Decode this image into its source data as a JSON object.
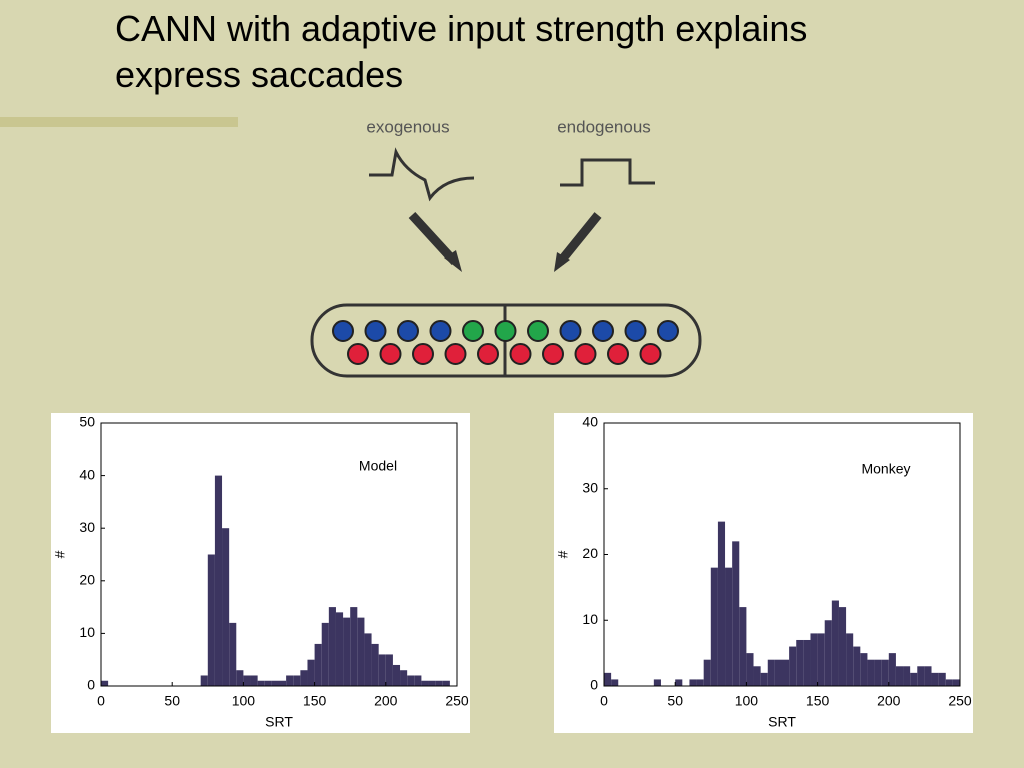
{
  "slide": {
    "title": "CANN with adaptive input strength explains express saccades"
  },
  "diagram": {
    "labels": [
      "exogenous",
      "endogenous"
    ]
  },
  "chart_data": [
    {
      "type": "histogram",
      "annotation": "Model",
      "xlabel": "SRT",
      "ylabel": "#",
      "color": "#3c3560",
      "bins": [
        0,
        5,
        10,
        15,
        20,
        25,
        30,
        35,
        40,
        45,
        50,
        55,
        60,
        65,
        70,
        75,
        80,
        85,
        90,
        95,
        100,
        105,
        110,
        115,
        120,
        125,
        130,
        135,
        140,
        145,
        150,
        155,
        160,
        165,
        170,
        175,
        180,
        185,
        190,
        195,
        200,
        205,
        210,
        215,
        220,
        225,
        230,
        235,
        240,
        245,
        250
      ],
      "values": [
        1,
        0,
        0,
        0,
        0,
        0,
        0,
        0,
        0,
        0,
        0,
        0,
        0,
        0,
        2,
        25,
        40,
        30,
        12,
        3,
        2,
        2,
        1,
        1,
        1,
        1,
        2,
        2,
        3,
        5,
        8,
        12,
        15,
        14,
        13,
        15,
        13,
        10,
        8,
        6,
        6,
        4,
        3,
        2,
        2,
        1,
        1,
        1,
        1,
        0
      ],
      "xlim": [
        0,
        250
      ],
      "xticks": [
        0,
        50,
        100,
        150,
        200,
        250
      ],
      "ylim": [
        0,
        50
      ],
      "yticks": [
        0,
        10,
        20,
        30,
        40,
        50
      ]
    },
    {
      "type": "histogram",
      "annotation": "Monkey",
      "xlabel": "SRT",
      "ylabel": "#",
      "color": "#3c3560",
      "bins": [
        0,
        5,
        10,
        15,
        20,
        25,
        30,
        35,
        40,
        45,
        50,
        55,
        60,
        65,
        70,
        75,
        80,
        85,
        90,
        95,
        100,
        105,
        110,
        115,
        120,
        125,
        130,
        135,
        140,
        145,
        150,
        155,
        160,
        165,
        170,
        175,
        180,
        185,
        190,
        195,
        200,
        205,
        210,
        215,
        220,
        225,
        230,
        235,
        240,
        245,
        250
      ],
      "values": [
        2,
        1,
        0,
        0,
        0,
        0,
        0,
        1,
        0,
        0,
        1,
        0,
        1,
        1,
        4,
        18,
        25,
        18,
        22,
        12,
        5,
        3,
        2,
        4,
        4,
        4,
        6,
        7,
        7,
        8,
        8,
        10,
        13,
        12,
        8,
        6,
        5,
        4,
        4,
        4,
        5,
        3,
        3,
        2,
        3,
        3,
        2,
        2,
        1,
        1
      ],
      "xlim": [
        0,
        250
      ],
      "xticks": [
        0,
        50,
        100,
        150,
        200,
        250
      ],
      "ylim": [
        0,
        40
      ],
      "yticks": [
        0,
        10,
        20,
        30,
        40
      ]
    }
  ]
}
